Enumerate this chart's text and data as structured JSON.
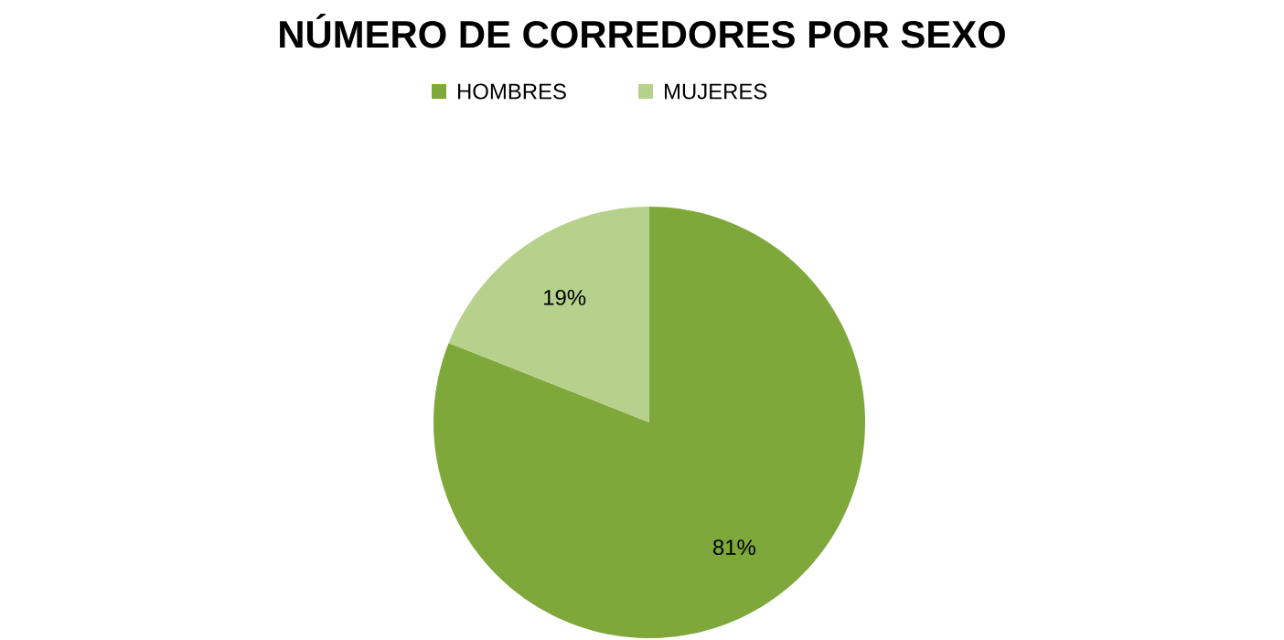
{
  "chart_data": {
    "type": "pie",
    "title": "NÚMERO DE CORREDORES POR SEXO",
    "categories": [
      "HOMBRES",
      "MUJERES"
    ],
    "values": [
      81,
      19
    ],
    "value_labels": [
      "81%",
      "19%"
    ],
    "colors": [
      "#7fa83a",
      "#b5d18c"
    ],
    "legend": "top"
  }
}
